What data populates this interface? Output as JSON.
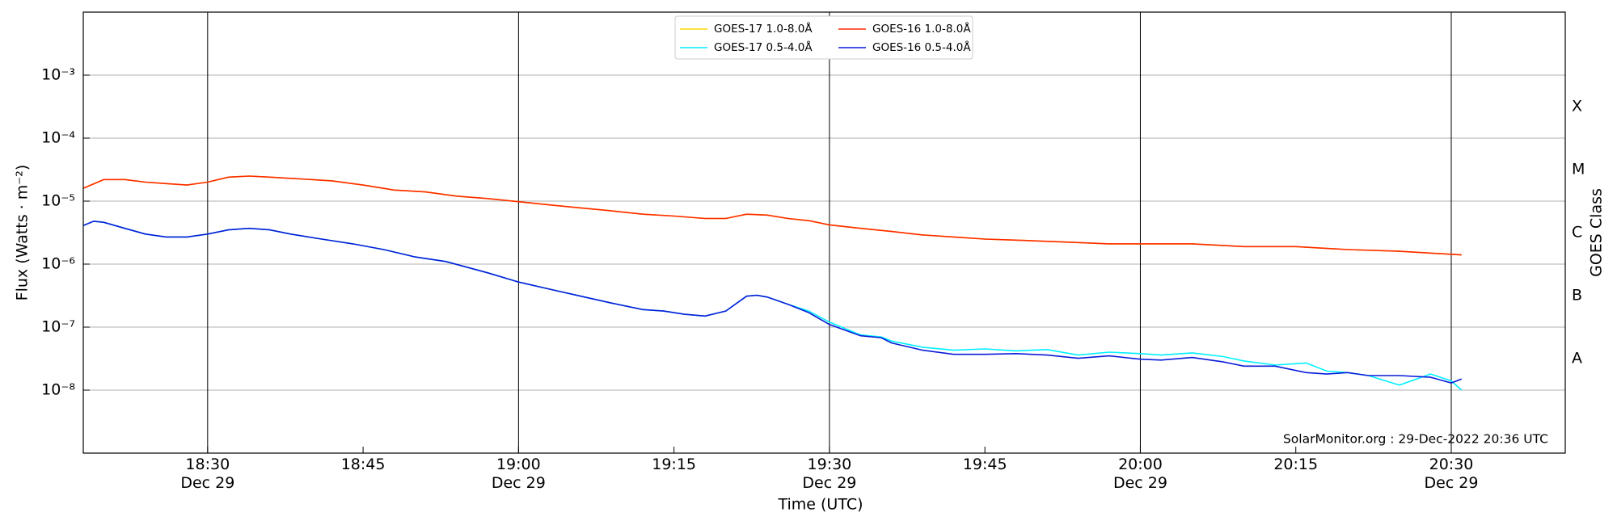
{
  "chart_data": {
    "type": "line",
    "x_label": "Time (UTC)",
    "y_label": "Flux (Watts · m⁻²)",
    "y2_label": "GOES Class",
    "annotation": "SolarMonitor.org : 29-Dec-2022 20:36 UTC",
    "y_scale": "log",
    "grid": true,
    "legend": "upper center",
    "xlim": [
      "18:18",
      "20:41"
    ],
    "xticks": [
      {
        "value": "18:30",
        "label": "18:30\nDec 29"
      },
      {
        "value": "18:45",
        "label": "18:45"
      },
      {
        "value": "19:00",
        "label": "19:00\nDec 29"
      },
      {
        "value": "19:15",
        "label": "19:15"
      },
      {
        "value": "19:30",
        "label": "19:30\nDec 29"
      },
      {
        "value": "19:45",
        "label": "19:45"
      },
      {
        "value": "20:00",
        "label": "20:00\nDec 29"
      },
      {
        "value": "20:15",
        "label": "20:15"
      },
      {
        "value": "20:30",
        "label": "20:30\nDec 29"
      }
    ],
    "ylim": [
      1e-09,
      0.01
    ],
    "yticks": [
      {
        "value": 1e-08,
        "label": "10⁻⁸"
      },
      {
        "value": 1e-07,
        "label": "10⁻⁷"
      },
      {
        "value": 1e-06,
        "label": "10⁻⁶"
      },
      {
        "value": 1e-05,
        "label": "10⁻⁵"
      },
      {
        "value": 0.0001,
        "label": "10⁻⁴"
      },
      {
        "value": 0.001,
        "label": "10⁻³"
      }
    ],
    "y2lim": [
      1e-09,
      0.01
    ],
    "y2ticks": [
      {
        "value": 3.16e-08,
        "label": "A"
      },
      {
        "value": 3.16e-07,
        "label": "B"
      },
      {
        "value": 3.16e-06,
        "label": "C"
      },
      {
        "value": 3.16e-05,
        "label": "M"
      },
      {
        "value": 0.000316,
        "label": "X"
      }
    ],
    "series": [
      {
        "name": "GOES-17 1.0-8.0Å",
        "color": "#ffd700",
        "x": [
          "18:18",
          "18:20",
          "18:22",
          "18:24",
          "18:26",
          "18:28",
          "18:30",
          "18:32",
          "18:34",
          "18:36",
          "18:38",
          "18:40",
          "18:42",
          "18:45",
          "18:48",
          "18:51",
          "18:54",
          "18:57",
          "19:00",
          "19:03",
          "19:06",
          "19:09",
          "19:12",
          "19:15",
          "19:18",
          "19:20",
          "19:22",
          "19:24",
          "19:26",
          "19:28",
          "19:30",
          "19:33",
          "19:36",
          "19:39",
          "19:42",
          "19:45",
          "19:48",
          "19:51",
          "19:54",
          "19:57",
          "20:00",
          "20:05",
          "20:10",
          "20:15",
          "20:20",
          "20:25",
          "20:31"
        ],
        "values": [
          1.6e-05,
          2.2e-05,
          2.2e-05,
          2e-05,
          1.9e-05,
          1.8e-05,
          2e-05,
          2.4e-05,
          2.5e-05,
          2.4e-05,
          2.3e-05,
          2.2e-05,
          2.1e-05,
          1.8e-05,
          1.5e-05,
          1.4e-05,
          1.2e-05,
          1.1e-05,
          9.8e-06,
          8.7e-06,
          7.8e-06,
          7e-06,
          6.2e-06,
          5.8e-06,
          5.3e-06,
          5.3e-06,
          6.2e-06,
          6e-06,
          5.3e-06,
          4.9e-06,
          4.2e-06,
          3.7e-06,
          3.3e-06,
          2.9e-06,
          2.7e-06,
          2.5e-06,
          2.4e-06,
          2.3e-06,
          2.2e-06,
          2.1e-06,
          2.1e-06,
          2.1e-06,
          1.9e-06,
          1.9e-06,
          1.7e-06,
          1.6e-06,
          1.4e-06
        ]
      },
      {
        "name": "GOES-17 0.5-4.0Å",
        "color": "#00f0ff",
        "x": [
          "18:18",
          "18:19",
          "18:20",
          "18:22",
          "18:24",
          "18:26",
          "18:28",
          "18:30",
          "18:32",
          "18:34",
          "18:36",
          "18:38",
          "18:41",
          "18:44",
          "18:47",
          "18:50",
          "18:53",
          "18:57",
          "19:00",
          "19:03",
          "19:06",
          "19:09",
          "19:12",
          "19:14",
          "19:16",
          "19:18",
          "19:20",
          "19:22",
          "19:23",
          "19:24",
          "19:26",
          "19:28",
          "19:30",
          "19:33",
          "19:35",
          "19:36",
          "19:39",
          "19:42",
          "19:45",
          "19:48",
          "19:51",
          "19:54",
          "19:57",
          "20:00",
          "20:02",
          "20:05",
          "20:08",
          "20:10",
          "20:13",
          "20:16",
          "20:18",
          "20:20",
          "20:22",
          "20:25",
          "20:28",
          "20:30",
          "20:31"
        ],
        "values": [
          4.1e-06,
          4.8e-06,
          4.6e-06,
          3.7e-06,
          3e-06,
          2.7e-06,
          2.7e-06,
          3e-06,
          3.5e-06,
          3.7e-06,
          3.5e-06,
          3e-06,
          2.5e-06,
          2.1e-06,
          1.7e-06,
          1.3e-06,
          1.1e-06,
          7.3e-07,
          5.2e-07,
          4e-07,
          3.1e-07,
          2.4e-07,
          1.9e-07,
          1.8e-07,
          1.6e-07,
          1.5e-07,
          1.8e-07,
          3.1e-07,
          3.2e-07,
          3e-07,
          2.3e-07,
          1.8e-07,
          1.2e-07,
          7.5e-08,
          7e-08,
          6e-08,
          4.8e-08,
          4.3e-08,
          4.5e-08,
          4.2e-08,
          4.4e-08,
          3.6e-08,
          4e-08,
          3.8e-08,
          3.6e-08,
          3.9e-08,
          3.4e-08,
          2.9e-08,
          2.5e-08,
          2.7e-08,
          2e-08,
          1.9e-08,
          1.7e-08,
          1.2e-08,
          1.8e-08,
          1.4e-08,
          1e-08
        ]
      },
      {
        "name": "GOES-16 1.0-8.0Å",
        "color": "#ff2a00",
        "x": [
          "18:18",
          "18:20",
          "18:22",
          "18:24",
          "18:26",
          "18:28",
          "18:30",
          "18:32",
          "18:34",
          "18:36",
          "18:38",
          "18:40",
          "18:42",
          "18:45",
          "18:48",
          "18:51",
          "18:54",
          "18:57",
          "19:00",
          "19:03",
          "19:06",
          "19:09",
          "19:12",
          "19:15",
          "19:18",
          "19:20",
          "19:22",
          "19:24",
          "19:26",
          "19:28",
          "19:30",
          "19:33",
          "19:36",
          "19:39",
          "19:42",
          "19:45",
          "19:48",
          "19:51",
          "19:54",
          "19:57",
          "20:00",
          "20:05",
          "20:10",
          "20:15",
          "20:20",
          "20:25",
          "20:31"
        ],
        "values": [
          1.6e-05,
          2.2e-05,
          2.2e-05,
          2e-05,
          1.9e-05,
          1.8e-05,
          2e-05,
          2.4e-05,
          2.5e-05,
          2.4e-05,
          2.3e-05,
          2.2e-05,
          2.1e-05,
          1.8e-05,
          1.5e-05,
          1.4e-05,
          1.2e-05,
          1.1e-05,
          9.8e-06,
          8.7e-06,
          7.8e-06,
          7e-06,
          6.2e-06,
          5.8e-06,
          5.3e-06,
          5.3e-06,
          6.2e-06,
          6e-06,
          5.3e-06,
          4.9e-06,
          4.2e-06,
          3.7e-06,
          3.3e-06,
          2.9e-06,
          2.7e-06,
          2.5e-06,
          2.4e-06,
          2.3e-06,
          2.2e-06,
          2.1e-06,
          2.1e-06,
          2.1e-06,
          1.9e-06,
          1.9e-06,
          1.7e-06,
          1.6e-06,
          1.4e-06
        ]
      },
      {
        "name": "GOES-16 0.5-4.0Å",
        "color": "#0a1cd8",
        "x": [
          "18:18",
          "18:19",
          "18:20",
          "18:22",
          "18:24",
          "18:26",
          "18:28",
          "18:30",
          "18:32",
          "18:34",
          "18:36",
          "18:38",
          "18:41",
          "18:44",
          "18:47",
          "18:50",
          "18:53",
          "18:57",
          "19:00",
          "19:03",
          "19:06",
          "19:09",
          "19:12",
          "19:14",
          "19:16",
          "19:18",
          "19:20",
          "19:22",
          "19:23",
          "19:24",
          "19:26",
          "19:28",
          "19:30",
          "19:33",
          "19:35",
          "19:36",
          "19:39",
          "19:42",
          "19:45",
          "19:48",
          "19:51",
          "19:54",
          "19:57",
          "20:00",
          "20:02",
          "20:05",
          "20:08",
          "20:10",
          "20:13",
          "20:16",
          "20:18",
          "20:20",
          "20:22",
          "20:25",
          "20:28",
          "20:30",
          "20:31"
        ],
        "values": [
          4.1e-06,
          4.8e-06,
          4.6e-06,
          3.7e-06,
          3e-06,
          2.7e-06,
          2.7e-06,
          3e-06,
          3.5e-06,
          3.7e-06,
          3.5e-06,
          3e-06,
          2.5e-06,
          2.1e-06,
          1.7e-06,
          1.3e-06,
          1.1e-06,
          7.3e-07,
          5.2e-07,
          4e-07,
          3.1e-07,
          2.4e-07,
          1.9e-07,
          1.8e-07,
          1.6e-07,
          1.5e-07,
          1.8e-07,
          3.1e-07,
          3.2e-07,
          3e-07,
          2.3e-07,
          1.7e-07,
          1.1e-07,
          7.3e-08,
          6.8e-08,
          5.6e-08,
          4.3e-08,
          3.7e-08,
          3.7e-08,
          3.8e-08,
          3.6e-08,
          3.2e-08,
          3.5e-08,
          3.1e-08,
          3e-08,
          3.3e-08,
          2.8e-08,
          2.4e-08,
          2.4e-08,
          1.9e-08,
          1.8e-08,
          1.9e-08,
          1.7e-08,
          1.7e-08,
          1.6e-08,
          1.3e-08,
          1.5e-08
        ]
      }
    ]
  }
}
